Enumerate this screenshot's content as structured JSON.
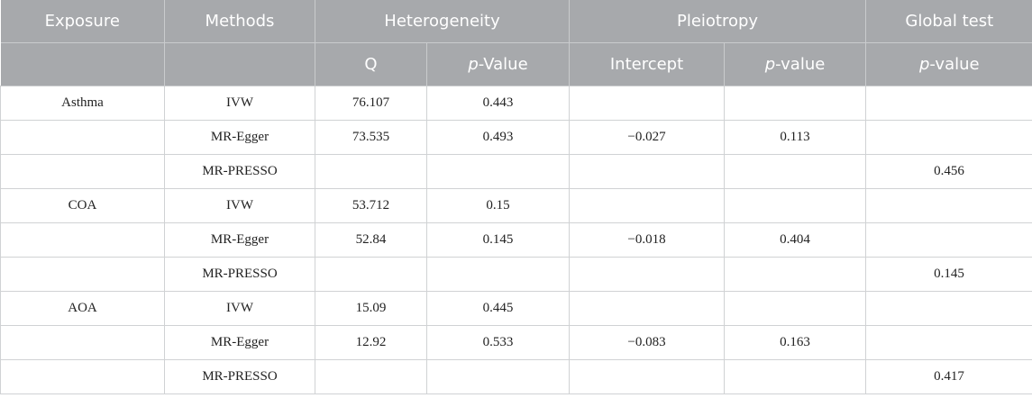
{
  "table": {
    "header": {
      "exposure": "Exposure",
      "methods": "Methods",
      "heterogeneity": "Heterogeneity",
      "pleiotropy": "Pleiotropy",
      "global_test": "Global test",
      "q": "Q",
      "het_p_prefix": "p",
      "het_p_suffix": "-Value",
      "intercept": "Intercept",
      "pleio_p_prefix": "p",
      "pleio_p_suffix": "-value",
      "global_p_prefix": "p",
      "global_p_suffix": "-value"
    },
    "rows": [
      {
        "exposure": "Asthma",
        "method": "IVW",
        "q": "76.107",
        "q_p": "0.443",
        "intercept": "",
        "intercept_p": "",
        "global_p": ""
      },
      {
        "exposure": "",
        "method": "MR-Egger",
        "q": "73.535",
        "q_p": "0.493",
        "intercept": "−0.027",
        "intercept_p": "0.113",
        "global_p": ""
      },
      {
        "exposure": "",
        "method": "MR-PRESSO",
        "q": "",
        "q_p": "",
        "intercept": "",
        "intercept_p": "",
        "global_p": "0.456"
      },
      {
        "exposure": "COA",
        "method": "IVW",
        "q": "53.712",
        "q_p": "0.15",
        "intercept": "",
        "intercept_p": "",
        "global_p": ""
      },
      {
        "exposure": "",
        "method": "MR-Egger",
        "q": "52.84",
        "q_p": "0.145",
        "intercept": "−0.018",
        "intercept_p": "0.404",
        "global_p": ""
      },
      {
        "exposure": "",
        "method": "MR-PRESSO",
        "q": "",
        "q_p": "",
        "intercept": "",
        "intercept_p": "",
        "global_p": "0.145"
      },
      {
        "exposure": "AOA",
        "method": "IVW",
        "q": "15.09",
        "q_p": "0.445",
        "intercept": "",
        "intercept_p": "",
        "global_p": ""
      },
      {
        "exposure": "",
        "method": "MR-Egger",
        "q": "12.92",
        "q_p": "0.533",
        "intercept": "−0.083",
        "intercept_p": "0.163",
        "global_p": ""
      },
      {
        "exposure": "",
        "method": "MR-PRESSO",
        "q": "",
        "q_p": "",
        "intercept": "",
        "intercept_p": "",
        "global_p": "0.417"
      }
    ]
  }
}
